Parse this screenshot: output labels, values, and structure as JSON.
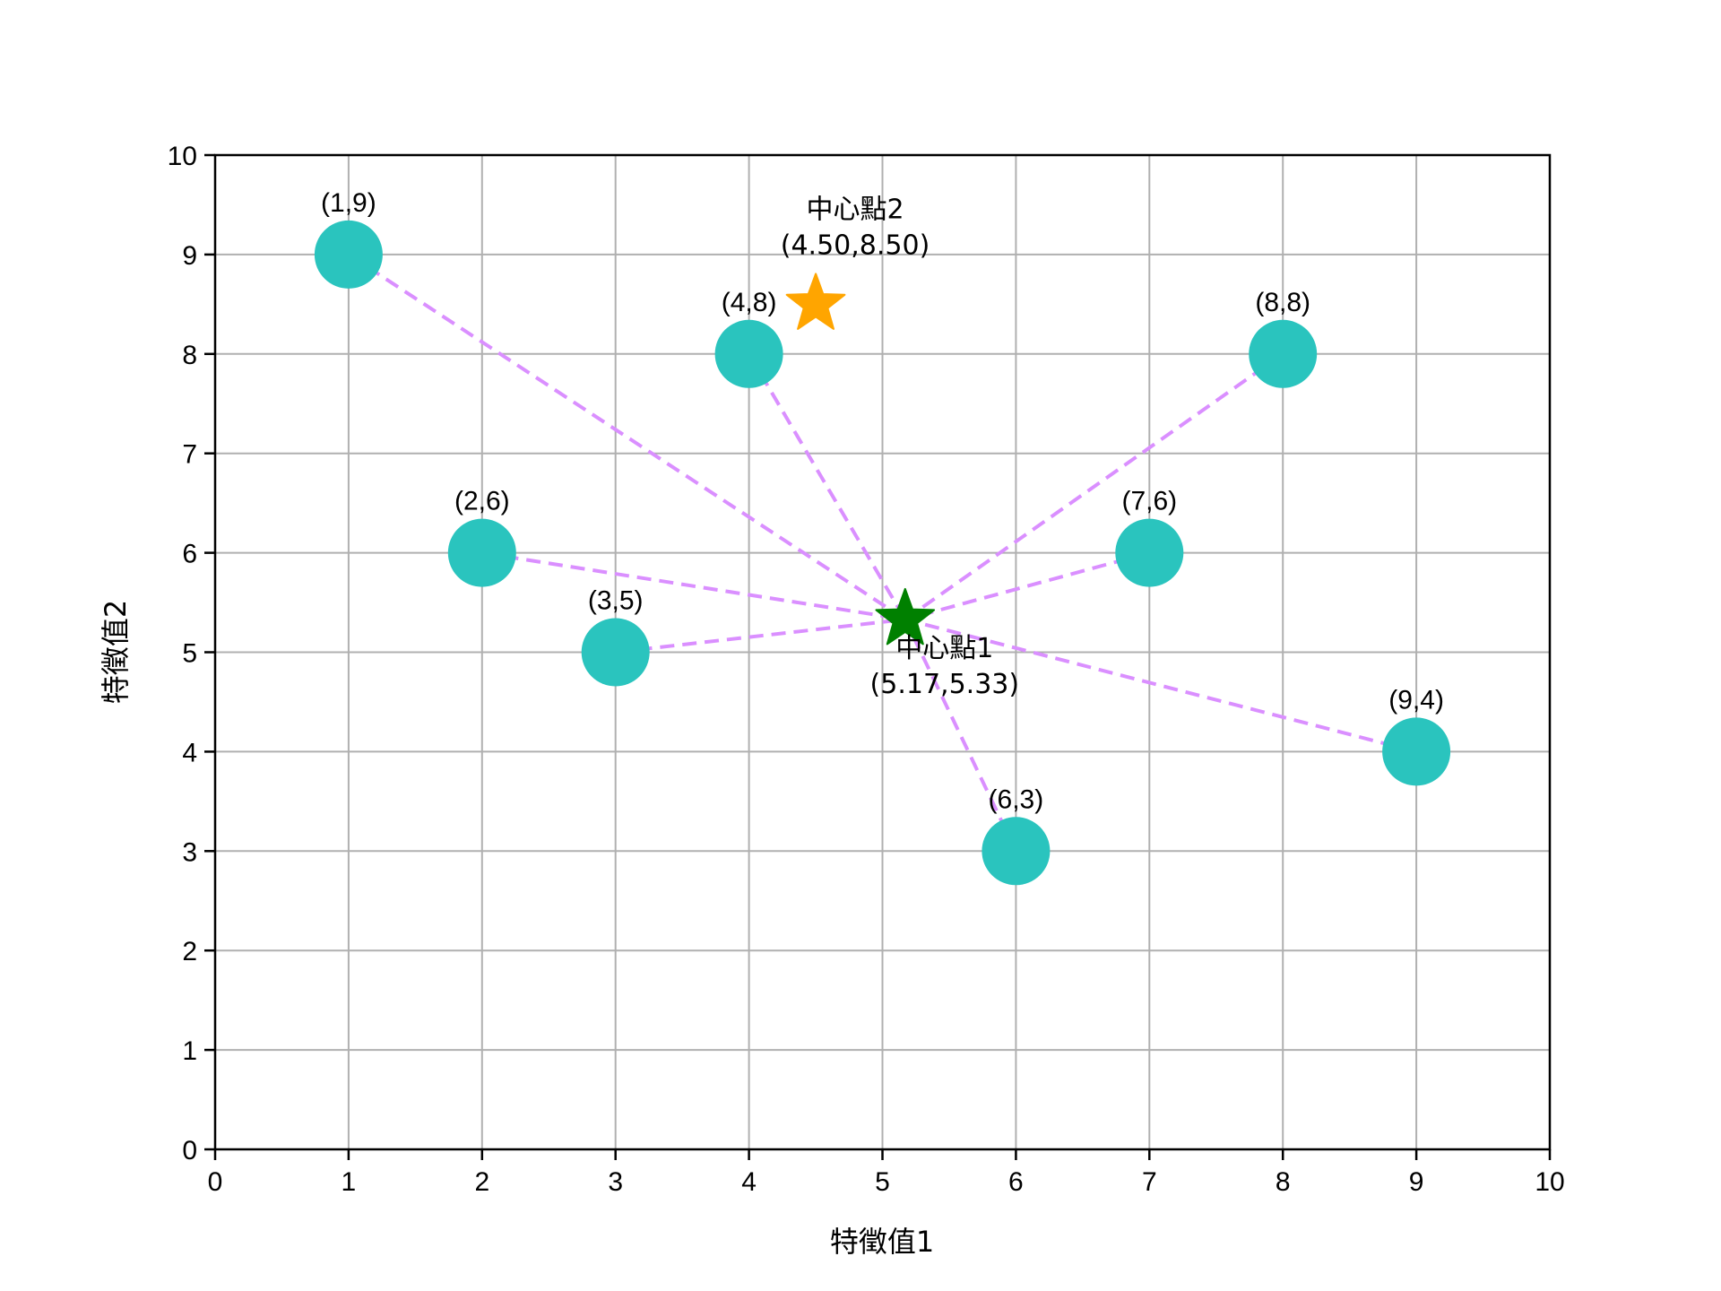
{
  "chart_data": {
    "type": "scatter",
    "title": "",
    "xlabel": "特徵值1",
    "ylabel": "特徵值2",
    "xlim": [
      0,
      10
    ],
    "ylim": [
      0,
      10
    ],
    "grid": true,
    "xticks": [
      0,
      1,
      2,
      3,
      4,
      5,
      6,
      7,
      8,
      9,
      10
    ],
    "yticks": [
      0,
      1,
      2,
      3,
      4,
      5,
      6,
      7,
      8,
      9,
      10
    ],
    "points": [
      {
        "x": 1,
        "y": 9,
        "label": "(1,9)"
      },
      {
        "x": 4,
        "y": 8,
        "label": "(4,8)"
      },
      {
        "x": 8,
        "y": 8,
        "label": "(8,8)"
      },
      {
        "x": 2,
        "y": 6,
        "label": "(2,6)"
      },
      {
        "x": 7,
        "y": 6,
        "label": "(7,6)"
      },
      {
        "x": 3,
        "y": 5,
        "label": "(3,5)"
      },
      {
        "x": 9,
        "y": 4,
        "label": "(9,4)"
      },
      {
        "x": 6,
        "y": 3,
        "label": "(6,3)"
      }
    ],
    "centroids": [
      {
        "name": "中心點1",
        "x": 5.17,
        "y": 5.33,
        "coord_label": "(5.17,5.33)",
        "color": "#008000"
      },
      {
        "name": "中心點2",
        "x": 4.5,
        "y": 8.5,
        "coord_label": "(4.50,8.50)",
        "color": "#FFA500"
      }
    ],
    "connections": {
      "from_centroid": "中心點1",
      "to_points": [
        "(1,9)",
        "(4,8)",
        "(8,8)",
        "(2,6)",
        "(7,6)",
        "(3,5)",
        "(9,4)",
        "(6,3)"
      ],
      "style": "dashed",
      "color": "#DA8FFF"
    },
    "colors": {
      "point": "#2AC4BE",
      "line": "#DA8FFF",
      "grid": "#B0B0B0",
      "axis": "#000000"
    }
  }
}
